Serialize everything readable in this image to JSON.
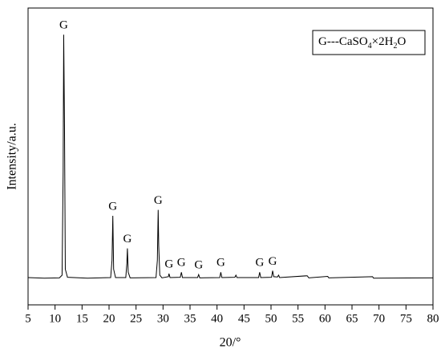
{
  "chart_data": {
    "type": "line",
    "xlabel": "20/°",
    "ylabel": "Intensity/a.u.",
    "xlim": [
      5,
      80
    ],
    "xticks": [
      5,
      10,
      15,
      20,
      25,
      30,
      35,
      40,
      45,
      50,
      55,
      60,
      65,
      70,
      75,
      80
    ],
    "ylim": [
      0,
      100
    ],
    "legend": {
      "corner": "upper right",
      "parts": [
        "G---CaSO",
        "4",
        "×2H",
        "2",
        "O"
      ]
    },
    "x": [
      5,
      8,
      10.8,
      11.3,
      11.5,
      11.6,
      11.75,
      11.9,
      12.3,
      16,
      20.3,
      20.55,
      20.7,
      20.85,
      21.2,
      23.1,
      23.3,
      23.4,
      23.55,
      23.9,
      28.7,
      28.95,
      29.1,
      29.2,
      29.4,
      29.8,
      31.0,
      31.1,
      31.3,
      33.2,
      33.4,
      33.6,
      36.4,
      36.6,
      36.8,
      40.5,
      40.7,
      40.9,
      43.3,
      43.5,
      43.7,
      47.7,
      47.9,
      48.1,
      50.1,
      50.3,
      50.5,
      51.2,
      51.4,
      51.6,
      56.7,
      57,
      60.5,
      60.7,
      68.8,
      69,
      80
    ],
    "series": [
      {
        "color": "#000000",
        "values": [
          9.2,
          9,
          9.1,
          10,
          45,
          91,
          60,
          12,
          9.3,
          9,
          9.2,
          15,
          30,
          12,
          9.2,
          9.2,
          14,
          19,
          11,
          9.1,
          9.2,
          15,
          32,
          20,
          10,
          9.1,
          9.5,
          10.5,
          9.2,
          9.3,
          11,
          9.2,
          9.2,
          10.2,
          9.1,
          9.2,
          11,
          9.2,
          9.3,
          10,
          9.2,
          9.2,
          11,
          9.2,
          9.3,
          11.5,
          9.5,
          9.4,
          10,
          9.2,
          9.8,
          9.1,
          9.6,
          9.1,
          9.5,
          9,
          9.1
        ]
      }
    ],
    "annotations": [
      {
        "text": "G",
        "x": 11.6
      },
      {
        "text": "G",
        "x": 20.7
      },
      {
        "text": "G",
        "x": 23.4
      },
      {
        "text": "G",
        "x": 29.1
      },
      {
        "text": "G",
        "x": 31.1
      },
      {
        "text": "G",
        "x": 33.4
      },
      {
        "text": "G",
        "x": 36.6
      },
      {
        "text": "G",
        "x": 40.7
      },
      {
        "text": "G",
        "x": 47.9
      },
      {
        "text": "G",
        "x": 50.3
      }
    ]
  }
}
